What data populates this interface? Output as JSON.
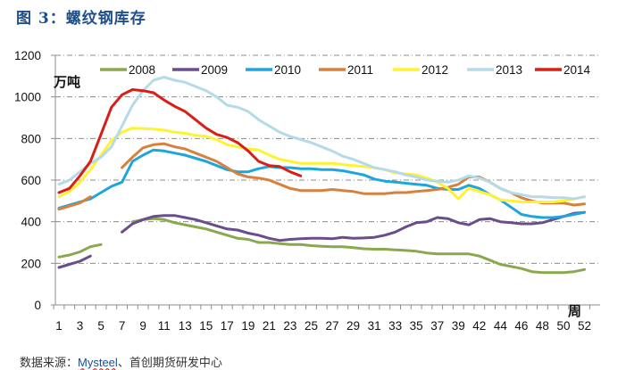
{
  "figure": {
    "title": "图 3：螺纹钢库存",
    "source_prefix": "数据来源：",
    "source_link": "Mysteel",
    "source_suffix": "、首创期货研发中心"
  },
  "chart_data": {
    "type": "line",
    "title": "螺纹钢库存",
    "ylabel": "万吨",
    "xlabel": "周",
    "ylim": [
      0,
      1200
    ],
    "yticks": [
      0,
      200,
      400,
      600,
      800,
      1000,
      1200
    ],
    "grid": true,
    "legend_position": "top",
    "x": [
      1,
      2,
      3,
      4,
      5,
      6,
      7,
      8,
      9,
      10,
      11,
      12,
      13,
      14,
      15,
      16,
      17,
      18,
      19,
      20,
      21,
      22,
      23,
      24,
      25,
      26,
      27,
      28,
      29,
      30,
      31,
      32,
      33,
      34,
      35,
      36,
      37,
      38,
      39,
      41,
      42,
      43,
      44,
      45,
      46,
      47,
      48,
      49,
      50,
      51,
      52
    ],
    "xtick_labels": [
      "1",
      "3",
      "5",
      "7",
      "9",
      "11",
      "13",
      "15",
      "17",
      "19",
      "21",
      "23",
      "25",
      "27",
      "29",
      "31",
      "33",
      "35",
      "37",
      "39",
      "42",
      "44",
      "46",
      "48",
      "50",
      "52"
    ],
    "series": [
      {
        "name": "2008",
        "color": "#8aa84e",
        "values": [
          230,
          240,
          255,
          280,
          290,
          null,
          null,
          400,
          410,
          415,
          410,
          395,
          385,
          375,
          365,
          350,
          335,
          320,
          315,
          300,
          300,
          295,
          290,
          290,
          285,
          282,
          280,
          280,
          275,
          270,
          268,
          268,
          265,
          262,
          258,
          250,
          245,
          245,
          245,
          245,
          235,
          215,
          195,
          185,
          175,
          160,
          155,
          155,
          155,
          160,
          170
        ]
      },
      {
        "name": "2009",
        "color": "#6a4e8c",
        "values": [
          180,
          195,
          210,
          235,
          null,
          null,
          350,
          390,
          410,
          425,
          430,
          430,
          420,
          410,
          395,
          380,
          365,
          360,
          345,
          335,
          320,
          310,
          315,
          318,
          320,
          320,
          318,
          325,
          320,
          322,
          325,
          335,
          350,
          375,
          395,
          400,
          420,
          415,
          395,
          385,
          410,
          415,
          400,
          395,
          390,
          390,
          395,
          410,
          425,
          440,
          445
        ]
      },
      {
        "name": "2010",
        "color": "#1ea6dc",
        "values": [
          465,
          480,
          495,
          510,
          540,
          570,
          590,
          690,
          720,
          745,
          740,
          730,
          720,
          705,
          690,
          670,
          650,
          640,
          640,
          655,
          665,
          660,
          660,
          655,
          655,
          650,
          650,
          645,
          635,
          625,
          605,
          595,
          590,
          585,
          580,
          575,
          560,
          555,
          555,
          575,
          560,
          530,
          505,
          470,
          435,
          425,
          420,
          420,
          425,
          435,
          445
        ]
      },
      {
        "name": "2011",
        "color": "#d7813e",
        "values": [
          460,
          475,
          490,
          520,
          null,
          null,
          660,
          710,
          755,
          770,
          775,
          760,
          750,
          730,
          710,
          690,
          660,
          630,
          615,
          610,
          600,
          580,
          560,
          550,
          550,
          550,
          555,
          550,
          545,
          535,
          535,
          535,
          540,
          540,
          545,
          550,
          555,
          565,
          580,
          615,
          615,
          590,
          560,
          540,
          515,
          500,
          490,
          490,
          490,
          480,
          485
        ]
      },
      {
        "name": "2012",
        "color": "#fff230",
        "values": [
          520,
          545,
          590,
          650,
          720,
          790,
          830,
          850,
          848,
          845,
          840,
          830,
          825,
          815,
          810,
          795,
          770,
          760,
          750,
          745,
          720,
          700,
          690,
          680,
          680,
          680,
          680,
          675,
          670,
          665,
          660,
          650,
          635,
          630,
          625,
          610,
          590,
          560,
          510,
          560,
          545,
          530,
          505,
          500,
          495,
          495,
          495,
          495,
          500,
          510,
          520
        ]
      },
      {
        "name": "2013",
        "color": "#b5dae8",
        "values": [
          580,
          600,
          640,
          680,
          710,
          760,
          860,
          960,
          1030,
          1080,
          1095,
          1080,
          1070,
          1050,
          1030,
          1000,
          960,
          950,
          930,
          890,
          860,
          830,
          810,
          795,
          780,
          760,
          740,
          715,
          700,
          680,
          660,
          650,
          640,
          625,
          615,
          600,
          595,
          590,
          600,
          620,
          610,
          590,
          560,
          540,
          530,
          520,
          520,
          515,
          515,
          510,
          520
        ]
      },
      {
        "name": "2014",
        "color": "#d91e18",
        "values": [
          540,
          560,
          620,
          690,
          820,
          950,
          1010,
          1035,
          1030,
          1020,
          985,
          955,
          930,
          890,
          850,
          820,
          805,
          780,
          740,
          690,
          670,
          665,
          640,
          620
        ]
      }
    ]
  }
}
